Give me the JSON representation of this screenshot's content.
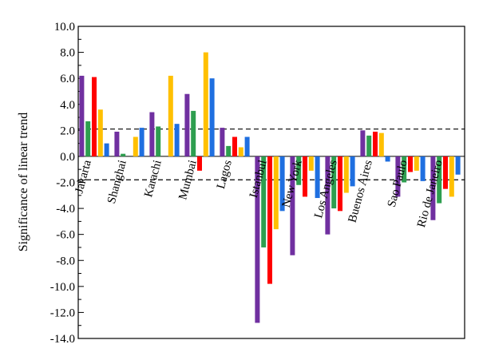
{
  "chart_data": {
    "type": "bar",
    "ylabel": "Significance of linear trend",
    "ylim": [
      -14.0,
      10.0
    ],
    "yticks": [
      "10.0",
      "8.0",
      "6.0",
      "4.0",
      "2.0",
      "0.0",
      "-2.0",
      "-4.0",
      "-6.0",
      "-8.0",
      "-10.0",
      "-12.0",
      "-14.0"
    ],
    "reference_lines": [
      2.1,
      -1.8
    ],
    "categories": [
      "Jakarta",
      "Shanghai",
      "Karachi",
      "Mumbai",
      "Lagos",
      "Istanbul",
      "New York",
      "Los Angeles",
      "Buenos Aires",
      "Sao Paulo",
      "Rio de Janeiro"
    ],
    "series": [
      {
        "color": "#7030a0",
        "values": [
          6.2,
          1.9,
          3.4,
          4.8,
          2.2,
          -12.8,
          -7.6,
          -6.0,
          2.0,
          -3.1,
          -4.9
        ]
      },
      {
        "color": "#2e9e4f",
        "values": [
          2.7,
          0.2,
          2.3,
          3.5,
          0.8,
          -7.0,
          -2.2,
          -4.0,
          1.6,
          -2.0,
          -3.6
        ]
      },
      {
        "color": "#ff0000",
        "values": [
          6.1,
          0.0,
          0.0,
          -1.1,
          1.5,
          -9.8,
          -3.1,
          -4.2,
          1.9,
          -1.2,
          -2.5
        ]
      },
      {
        "color": "#ffc000",
        "values": [
          3.6,
          1.5,
          6.2,
          8.0,
          0.7,
          -5.6,
          -1.1,
          -2.8,
          1.8,
          -1.1,
          -3.1
        ]
      },
      {
        "color": "#1f6fe0",
        "values": [
          1.0,
          2.2,
          2.5,
          6.0,
          1.5,
          -4.2,
          -3.2,
          -2.3,
          -0.4,
          -1.9,
          -1.4
        ]
      }
    ],
    "grid": false,
    "legend": "none"
  }
}
